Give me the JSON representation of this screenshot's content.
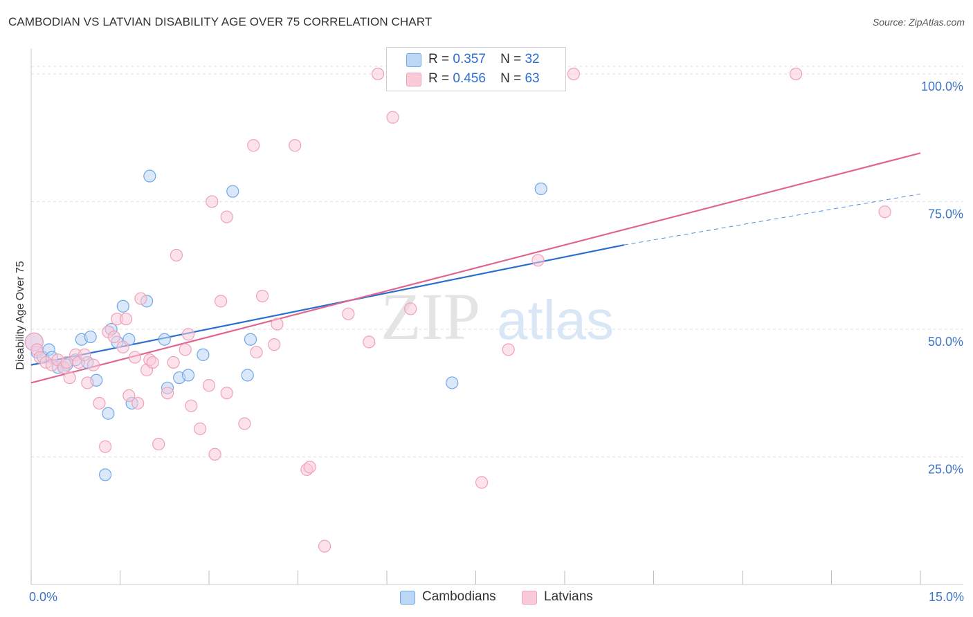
{
  "title": "CAMBODIAN VS LATVIAN DISABILITY AGE OVER 75 CORRELATION CHART",
  "source": "Source: ZipAtlas.com",
  "watermark": {
    "zip": "ZIP",
    "atlas": "atlas"
  },
  "colors": {
    "blue": "#6fa8e8",
    "blue_fill": "#bcd6f5",
    "blue_line": "#2a6fcd",
    "pink": "#f0a0ba",
    "pink_fill": "#f9cbd9",
    "pink_line": "#e0668f",
    "tick_label": "#3d74c7",
    "grid": "#dddddd"
  },
  "legend": {
    "rows": [
      {
        "r_label": "R =",
        "r_value": "0.357",
        "n_label": "N =",
        "n_value": "32",
        "series": "Cambodians"
      },
      {
        "r_label": "R =",
        "r_value": "0.456",
        "n_label": "N =",
        "n_value": "63",
        "series": "Latvians"
      }
    ],
    "bottom": [
      "Cambodians",
      "Latvians"
    ]
  },
  "chart_data": {
    "type": "scatter",
    "title": "CAMBODIAN VS LATVIAN DISABILITY AGE OVER 75 CORRELATION CHART",
    "xlabel": "",
    "ylabel": "Disability Age Over 75",
    "xlim": [
      0,
      15
    ],
    "ylim": [
      0,
      105
    ],
    "x_ticks": [
      0,
      1.5,
      3,
      4.5,
      6,
      7.5,
      9,
      10.5,
      12,
      13.5,
      15
    ],
    "x_tick_labels": {
      "0": "0.0%",
      "15": "15.0%"
    },
    "y_ticks": [
      25,
      50,
      75,
      100
    ],
    "y_tick_labels": [
      "25.0%",
      "50.0%",
      "75.0%",
      "100.0%"
    ],
    "grid": "horizontal dashed",
    "legend_position": "top-center",
    "series": [
      {
        "name": "Cambodians",
        "color": "#6fa8e8",
        "points": [
          [
            0.05,
            47.5
          ],
          [
            0.1,
            45.5
          ],
          [
            0.2,
            44.5
          ],
          [
            0.3,
            46
          ],
          [
            0.35,
            44.5
          ],
          [
            0.45,
            42.5
          ],
          [
            0.6,
            43
          ],
          [
            0.75,
            44
          ],
          [
            0.85,
            48
          ],
          [
            0.95,
            43.5
          ],
          [
            1.0,
            48.5
          ],
          [
            1.1,
            40
          ],
          [
            1.3,
            33.5
          ],
          [
            1.25,
            21.5
          ],
          [
            1.35,
            50
          ],
          [
            1.45,
            47.5
          ],
          [
            1.55,
            54.5
          ],
          [
            1.65,
            48
          ],
          [
            1.7,
            35.5
          ],
          [
            1.95,
            55.5
          ],
          [
            2.0,
            80
          ],
          [
            2.25,
            48
          ],
          [
            2.3,
            38.5
          ],
          [
            2.5,
            40.5
          ],
          [
            2.65,
            41
          ],
          [
            2.9,
            45
          ],
          [
            3.4,
            77
          ],
          [
            3.65,
            41
          ],
          [
            3.7,
            48
          ],
          [
            7.1,
            39.5
          ],
          [
            8.6,
            77.5
          ],
          [
            0.55,
            42.5
          ]
        ],
        "trend": {
          "x": [
            0,
            10.0
          ],
          "y": [
            43,
            66.5
          ],
          "dashed_extension": {
            "x": [
              10.0,
              15
            ],
            "y": [
              66.5,
              76.5
            ]
          }
        }
      },
      {
        "name": "Latvians",
        "color": "#f0a0ba",
        "points": [
          [
            0.05,
            47.5
          ],
          [
            0.1,
            46
          ],
          [
            0.15,
            44.5
          ],
          [
            0.25,
            43.5
          ],
          [
            0.35,
            43
          ],
          [
            0.45,
            44
          ],
          [
            0.55,
            42.5
          ],
          [
            0.6,
            43.5
          ],
          [
            0.65,
            40.5
          ],
          [
            0.75,
            45
          ],
          [
            0.8,
            43.5
          ],
          [
            0.9,
            45
          ],
          [
            0.95,
            39.5
          ],
          [
            1.05,
            43
          ],
          [
            1.15,
            35.5
          ],
          [
            1.25,
            27
          ],
          [
            1.3,
            49.5
          ],
          [
            1.4,
            48.5
          ],
          [
            1.45,
            52
          ],
          [
            1.55,
            46.5
          ],
          [
            1.6,
            52
          ],
          [
            1.65,
            37
          ],
          [
            1.75,
            44.5
          ],
          [
            1.8,
            35.5
          ],
          [
            1.85,
            56
          ],
          [
            1.95,
            42
          ],
          [
            2.0,
            44
          ],
          [
            2.05,
            43.5
          ],
          [
            2.15,
            27.5
          ],
          [
            2.3,
            37.5
          ],
          [
            2.4,
            43.5
          ],
          [
            2.45,
            64.5
          ],
          [
            2.6,
            46
          ],
          [
            2.65,
            49
          ],
          [
            2.7,
            35
          ],
          [
            2.85,
            30.5
          ],
          [
            3.0,
            39
          ],
          [
            3.05,
            75
          ],
          [
            3.1,
            25.5
          ],
          [
            3.2,
            55.5
          ],
          [
            3.3,
            37.5
          ],
          [
            3.3,
            72
          ],
          [
            3.6,
            31.5
          ],
          [
            3.75,
            86
          ],
          [
            3.8,
            45.5
          ],
          [
            3.9,
            56.5
          ],
          [
            4.1,
            47
          ],
          [
            4.15,
            51
          ],
          [
            4.45,
            86
          ],
          [
            4.65,
            22.5
          ],
          [
            4.7,
            23
          ],
          [
            4.95,
            7.5
          ],
          [
            5.35,
            53
          ],
          [
            5.7,
            47.5
          ],
          [
            5.85,
            100
          ],
          [
            6.1,
            91.5
          ],
          [
            6.4,
            54
          ],
          [
            7.6,
            20
          ],
          [
            8.05,
            46
          ],
          [
            8.55,
            63.5
          ],
          [
            9.15,
            100
          ],
          [
            12.9,
            100
          ],
          [
            14.4,
            73
          ]
        ],
        "trend": {
          "x": [
            0,
            15
          ],
          "y": [
            39.5,
            84.5
          ]
        }
      }
    ]
  }
}
